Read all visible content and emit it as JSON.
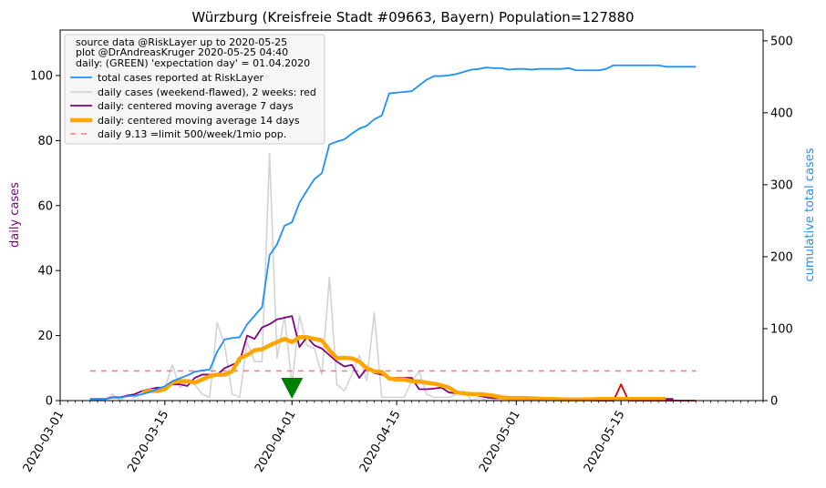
{
  "chart_data": {
    "type": "line",
    "title": "Würzburg (Kreisfreie Stadt #09663, Bayern) Population=127880",
    "ylabel_left": "daily cases",
    "ylabel_right": "cumulative total cases",
    "ylim_left": [
      0,
      114
    ],
    "ylim_right": [
      0,
      515
    ],
    "y_left_ticks": [
      0,
      20,
      40,
      60,
      80,
      100
    ],
    "y_right_ticks": [
      0,
      100,
      200,
      300,
      400,
      500
    ],
    "x_range": [
      "2020-03-01",
      "2020-06-03"
    ],
    "x_ticks": [
      "2020-03-01",
      "2020-03-15",
      "2020-04-01",
      "2020-04-15",
      "2020-05-01",
      "2020-05-15"
    ],
    "grid": false,
    "legend_position": "top-left",
    "legend_header": [
      "source data @RiskLayer up to 2020-05-25",
      "plot @DrAndreasKruger 2020-05-25 04:40",
      "daily: (GREEN) 'expectation day' = 01.04.2020"
    ],
    "colors": {
      "total": "#1e90ff",
      "daily_raw": "#d3d3d3",
      "daily_recent": "#e00000",
      "ma7": "#800080",
      "ma14": "#ffa500",
      "limit": "#f08080",
      "expectation_marker": "#008000",
      "left_label": "#800080",
      "right_label": "#1e90ff"
    },
    "expectation_day": "2020-04-01",
    "series": [
      {
        "key": "total",
        "axis": "right",
        "name": "total cases reported at RiskLayer",
        "x": [
          "2020-03-05",
          "2020-03-06",
          "2020-03-07",
          "2020-03-08",
          "2020-03-09",
          "2020-03-10",
          "2020-03-11",
          "2020-03-12",
          "2020-03-13",
          "2020-03-14",
          "2020-03-15",
          "2020-03-16",
          "2020-03-17",
          "2020-03-18",
          "2020-03-19",
          "2020-03-20",
          "2020-03-21",
          "2020-03-22",
          "2020-03-23",
          "2020-03-24",
          "2020-03-25",
          "2020-03-26",
          "2020-03-27",
          "2020-03-28",
          "2020-03-29",
          "2020-03-30",
          "2020-03-31",
          "2020-04-01",
          "2020-04-02",
          "2020-04-03",
          "2020-04-04",
          "2020-04-05",
          "2020-04-06",
          "2020-04-07",
          "2020-04-08",
          "2020-04-09",
          "2020-04-10",
          "2020-04-11",
          "2020-04-12",
          "2020-04-13",
          "2020-04-14",
          "2020-04-15",
          "2020-04-16",
          "2020-04-17",
          "2020-04-18",
          "2020-04-19",
          "2020-04-20",
          "2020-04-21",
          "2020-04-22",
          "2020-04-23",
          "2020-04-24",
          "2020-04-25",
          "2020-04-26",
          "2020-04-27",
          "2020-04-28",
          "2020-04-29",
          "2020-04-30",
          "2020-05-01",
          "2020-05-02",
          "2020-05-03",
          "2020-05-04",
          "2020-05-05",
          "2020-05-06",
          "2020-05-07",
          "2020-05-08",
          "2020-05-09",
          "2020-05-10",
          "2020-05-11",
          "2020-05-12",
          "2020-05-13",
          "2020-05-14",
          "2020-05-15",
          "2020-05-16",
          "2020-05-17",
          "2020-05-18",
          "2020-05-19",
          "2020-05-20",
          "2020-05-21",
          "2020-05-22",
          "2020-05-23",
          "2020-05-24",
          "2020-05-25"
        ],
        "values": [
          2,
          2,
          2,
          4,
          4,
          6,
          7,
          9,
          12,
          16,
          20,
          27,
          31,
          35,
          40,
          42,
          43,
          68,
          85,
          87,
          88,
          106,
          118,
          130,
          202,
          217,
          243,
          248,
          275,
          292,
          308,
          316,
          356,
          360,
          363,
          371,
          378,
          382,
          391,
          396,
          427,
          428,
          429,
          430,
          438,
          446,
          451,
          451,
          452,
          454,
          457,
          460,
          461,
          463,
          462,
          462,
          460,
          461,
          461,
          460,
          461,
          461,
          461,
          461,
          462,
          459,
          459,
          459,
          459,
          461,
          466,
          466,
          466,
          466,
          466,
          466,
          466,
          464,
          464,
          464,
          464,
          464
        ]
      },
      {
        "key": "daily_raw",
        "axis": "left",
        "name": "daily cases (weekend-flawed), 2 weeks: red",
        "x": [
          "2020-03-05",
          "2020-03-06",
          "2020-03-07",
          "2020-03-08",
          "2020-03-09",
          "2020-03-10",
          "2020-03-11",
          "2020-03-12",
          "2020-03-13",
          "2020-03-14",
          "2020-03-15",
          "2020-03-16",
          "2020-03-17",
          "2020-03-18",
          "2020-03-19",
          "2020-03-20",
          "2020-03-21",
          "2020-03-22",
          "2020-03-23",
          "2020-03-24",
          "2020-03-25",
          "2020-03-26",
          "2020-03-27",
          "2020-03-28",
          "2020-03-29",
          "2020-03-30",
          "2020-03-31",
          "2020-04-01",
          "2020-04-02",
          "2020-04-03",
          "2020-04-04",
          "2020-04-05",
          "2020-04-06",
          "2020-04-07",
          "2020-04-08",
          "2020-04-09",
          "2020-04-10",
          "2020-04-11",
          "2020-04-12",
          "2020-04-13",
          "2020-04-14",
          "2020-04-15",
          "2020-04-16",
          "2020-04-17",
          "2020-04-18",
          "2020-04-19",
          "2020-04-20",
          "2020-04-21",
          "2020-04-22",
          "2020-04-23",
          "2020-04-24",
          "2020-04-25",
          "2020-04-26",
          "2020-04-27",
          "2020-04-28",
          "2020-04-29",
          "2020-04-30",
          "2020-05-01",
          "2020-05-02",
          "2020-05-03",
          "2020-05-04",
          "2020-05-05",
          "2020-05-06",
          "2020-05-07",
          "2020-05-08",
          "2020-05-09",
          "2020-05-10"
        ],
        "values": [
          0,
          0,
          0,
          2,
          0,
          2,
          1,
          2,
          3,
          4,
          4,
          11,
          4,
          6,
          5,
          2,
          1,
          24,
          17,
          2,
          1,
          18,
          12,
          12,
          76,
          13,
          26,
          5,
          26,
          17,
          16,
          8,
          38,
          5,
          3,
          8,
          14,
          6,
          27,
          1,
          1,
          1,
          1,
          6,
          9,
          2,
          1,
          1,
          1,
          2,
          3,
          0,
          1,
          0,
          0,
          0,
          0,
          0,
          0,
          0,
          0,
          0,
          0,
          0,
          0,
          0,
          0
        ]
      },
      {
        "key": "daily_recent",
        "axis": "left",
        "name": "",
        "x": [
          "2020-05-11",
          "2020-05-12",
          "2020-05-13",
          "2020-05-14",
          "2020-05-15",
          "2020-05-16",
          "2020-05-17",
          "2020-05-18",
          "2020-05-19",
          "2020-05-20",
          "2020-05-21",
          "2020-05-22",
          "2020-05-23",
          "2020-05-24",
          "2020-05-25"
        ],
        "values": [
          0,
          0,
          0,
          0,
          5,
          0,
          0,
          0,
          0,
          0,
          0,
          0,
          0,
          0,
          0
        ]
      },
      {
        "key": "ma7",
        "axis": "left",
        "name": "daily: centered moving average 7 days",
        "x": [
          "2020-03-05",
          "2020-03-06",
          "2020-03-07",
          "2020-03-08",
          "2020-03-09",
          "2020-03-10",
          "2020-03-11",
          "2020-03-12",
          "2020-03-13",
          "2020-03-14",
          "2020-03-15",
          "2020-03-16",
          "2020-03-17",
          "2020-03-18",
          "2020-03-19",
          "2020-03-20",
          "2020-03-21",
          "2020-03-22",
          "2020-03-23",
          "2020-03-24",
          "2020-03-25",
          "2020-03-26",
          "2020-03-27",
          "2020-03-28",
          "2020-03-29",
          "2020-03-30",
          "2020-03-31",
          "2020-04-01",
          "2020-04-02",
          "2020-04-03",
          "2020-04-04",
          "2020-04-05",
          "2020-04-06",
          "2020-04-07",
          "2020-04-08",
          "2020-04-09",
          "2020-04-10",
          "2020-04-11",
          "2020-04-12",
          "2020-04-13",
          "2020-04-14",
          "2020-04-15",
          "2020-04-16",
          "2020-04-17",
          "2020-04-18",
          "2020-04-19",
          "2020-04-20",
          "2020-04-21",
          "2020-04-22",
          "2020-04-23",
          "2020-04-24",
          "2020-04-25",
          "2020-04-26",
          "2020-04-27",
          "2020-04-28",
          "2020-04-29",
          "2020-04-30",
          "2020-05-01",
          "2020-05-02",
          "2020-05-03",
          "2020-05-04",
          "2020-05-05",
          "2020-05-06",
          "2020-05-07",
          "2020-05-08",
          "2020-05-09",
          "2020-05-10",
          "2020-05-11",
          "2020-05-12",
          "2020-05-13",
          "2020-05-14",
          "2020-05-15",
          "2020-05-16",
          "2020-05-17",
          "2020-05-18",
          "2020-05-19",
          "2020-05-20",
          "2020-05-21",
          "2020-05-22"
        ],
        "values": [
          0.5,
          0.5,
          0.5,
          1,
          1,
          1.5,
          2,
          3,
          3.5,
          4,
          4,
          5,
          5,
          4.5,
          7,
          8,
          8,
          8,
          10,
          11,
          12,
          20,
          19,
          22.5,
          23.5,
          25,
          25.5,
          26,
          16.5,
          19.5,
          17,
          16,
          14,
          12,
          10.5,
          11,
          7,
          10,
          8.5,
          8,
          7,
          7,
          7,
          7,
          3.5,
          3.5,
          3.7,
          4,
          2.5,
          2.2,
          2,
          2,
          1.5,
          1,
          0.7,
          0.7,
          0.7,
          0.6,
          0.5,
          0.4,
          0.3,
          0.3,
          0.3,
          0.3,
          0.3,
          0.4,
          0.5,
          0.6,
          0.7,
          0.7,
          0.7,
          0.8,
          0.8,
          0.8,
          0.8,
          0.8,
          0.7,
          0.5,
          0.5
        ]
      },
      {
        "key": "ma14",
        "axis": "left",
        "name": "daily: centered moving average 14 days",
        "x": [
          "2020-03-12",
          "2020-03-13",
          "2020-03-14",
          "2020-03-15",
          "2020-03-16",
          "2020-03-17",
          "2020-03-18",
          "2020-03-19",
          "2020-03-20",
          "2020-03-21",
          "2020-03-22",
          "2020-03-23",
          "2020-03-24",
          "2020-03-25",
          "2020-03-26",
          "2020-03-27",
          "2020-03-28",
          "2020-03-29",
          "2020-03-30",
          "2020-03-31",
          "2020-04-01",
          "2020-04-02",
          "2020-04-03",
          "2020-04-04",
          "2020-04-05",
          "2020-04-06",
          "2020-04-07",
          "2020-04-08",
          "2020-04-09",
          "2020-04-10",
          "2020-04-11",
          "2020-04-12",
          "2020-04-13",
          "2020-04-14",
          "2020-04-15",
          "2020-04-16",
          "2020-04-17",
          "2020-04-18",
          "2020-04-19",
          "2020-04-20",
          "2020-04-21",
          "2020-04-22",
          "2020-04-23",
          "2020-04-24",
          "2020-04-25",
          "2020-04-26",
          "2020-04-27",
          "2020-04-28",
          "2020-04-29",
          "2020-04-30",
          "2020-05-01",
          "2020-05-02",
          "2020-05-03",
          "2020-05-04",
          "2020-05-05",
          "2020-05-06",
          "2020-05-07",
          "2020-05-08",
          "2020-05-09",
          "2020-05-10",
          "2020-05-11",
          "2020-05-12",
          "2020-05-13",
          "2020-05-14",
          "2020-05-15",
          "2020-05-16",
          "2020-05-17",
          "2020-05-18",
          "2020-05-19",
          "2020-05-20",
          "2020-05-21"
        ],
        "values": [
          2.5,
          3,
          3,
          3.5,
          5.5,
          6,
          6,
          5.5,
          6.5,
          7.5,
          8,
          8,
          9,
          13,
          14,
          15.5,
          15.8,
          17,
          18,
          19,
          18,
          19.5,
          19.5,
          19,
          18.5,
          15.5,
          13,
          13.2,
          13,
          12,
          10,
          9,
          8.8,
          6.8,
          6.5,
          6.5,
          6,
          5.9,
          5.5,
          5.2,
          4.7,
          4,
          2.5,
          2.2,
          2,
          2,
          1.8,
          1.5,
          1,
          0.8,
          0.8,
          0.8,
          0.7,
          0.6,
          0.5,
          0.5,
          0.4,
          0.3,
          0.3,
          0.4,
          0.4,
          0.5,
          0.5,
          0.5,
          0.5,
          0.5,
          0.5,
          0.5,
          0.5,
          0.5,
          0.5
        ]
      },
      {
        "key": "limit",
        "axis": "left",
        "name": "daily 9.13 =limit 500/week/1mio pop.",
        "x": [
          "2020-03-05",
          "2020-05-25"
        ],
        "values": [
          9.13,
          9.13
        ]
      }
    ]
  }
}
